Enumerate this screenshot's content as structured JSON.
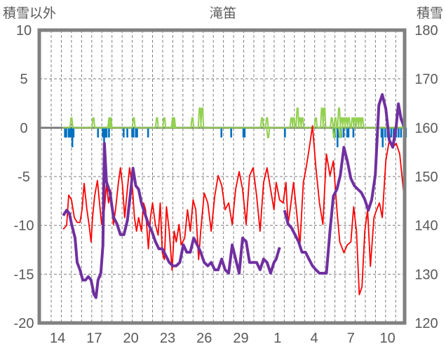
{
  "chart_data": {
    "type": "line",
    "title": "滝笛",
    "ylabel_left": "積雪以外",
    "ylabel_right": "積雪",
    "ylim_left": [
      -20,
      10
    ],
    "yticks_left": [
      "10",
      "5",
      "0",
      "-5",
      "-10",
      "-15",
      "-20"
    ],
    "ylim_right": [
      120,
      180
    ],
    "yticks_right": [
      "180",
      "170",
      "160",
      "150",
      "140",
      "130",
      "120"
    ],
    "x_unit": "days since 14th",
    "xlim": [
      -1.5,
      28.4
    ],
    "xtick_labels": [
      "14",
      "17",
      "20",
      "23",
      "26",
      "29",
      "1",
      "4",
      "7",
      "10"
    ],
    "grid": true,
    "colors": {
      "temperature": "#ff0000",
      "snow_depth": "#7030a0",
      "precip": "#92d050",
      "bars": "#0070c0",
      "frame": "#808080"
    },
    "series": [
      {
        "name": "temperature",
        "axis": "left",
        "points": [
          [
            0.46,
            -10.4
          ],
          [
            0.74,
            -10.0
          ],
          [
            0.91,
            -6.9
          ],
          [
            1.14,
            -7.4
          ],
          [
            1.37,
            -9.2
          ],
          [
            1.6,
            -9.7
          ],
          [
            1.83,
            -9.7
          ],
          [
            2.0,
            -8.4
          ],
          [
            2.17,
            -5.7
          ],
          [
            2.4,
            -8.4
          ],
          [
            2.57,
            -9.9
          ],
          [
            2.74,
            -11.7
          ],
          [
            2.86,
            -9.2
          ],
          [
            3.03,
            -7.0
          ],
          [
            3.26,
            -5.4
          ],
          [
            3.43,
            -7.7
          ],
          [
            3.6,
            -9.9
          ],
          [
            3.83,
            -8.4
          ],
          [
            4.0,
            -5.7
          ],
          [
            4.17,
            -7.7
          ],
          [
            4.34,
            -6.4
          ],
          [
            4.57,
            -9.9
          ],
          [
            4.74,
            -8.4
          ],
          [
            4.97,
            -5.7
          ],
          [
            5.14,
            -4.1
          ],
          [
            5.31,
            -5.9
          ],
          [
            5.49,
            -9.2
          ],
          [
            5.71,
            -6.3
          ],
          [
            5.89,
            -4.1
          ],
          [
            6.11,
            -5.9
          ],
          [
            6.29,
            -9.2
          ],
          [
            6.46,
            -10.6
          ],
          [
            6.63,
            -9.2
          ],
          [
            6.86,
            -10.6
          ],
          [
            7.03,
            -7.7
          ],
          [
            7.2,
            -8.4
          ],
          [
            7.43,
            -12.4
          ],
          [
            7.6,
            -9.2
          ],
          [
            7.77,
            -7.7
          ],
          [
            8.0,
            -9.9
          ],
          [
            8.23,
            -11.0
          ],
          [
            8.4,
            -7.7
          ],
          [
            8.57,
            -12.8
          ],
          [
            8.74,
            -13.5
          ],
          [
            8.91,
            -8.1
          ],
          [
            9.14,
            -10.6
          ],
          [
            9.37,
            -14.6
          ],
          [
            9.54,
            -10.6
          ],
          [
            9.71,
            -11.7
          ],
          [
            9.94,
            -9.9
          ],
          [
            10.11,
            -12.0
          ],
          [
            10.4,
            -11.3
          ],
          [
            10.63,
            -8.4
          ],
          [
            10.86,
            -10.6
          ],
          [
            11.09,
            -7.4
          ],
          [
            11.31,
            -8.4
          ],
          [
            11.54,
            -13.5
          ],
          [
            11.71,
            -10.6
          ],
          [
            12.0,
            -6.7
          ],
          [
            12.29,
            -7.7
          ],
          [
            12.57,
            -10.6
          ],
          [
            12.86,
            -7.0
          ],
          [
            13.14,
            -4.9
          ],
          [
            13.43,
            -5.9
          ],
          [
            13.71,
            -8.4
          ],
          [
            14.0,
            -7.7
          ],
          [
            14.29,
            -9.9
          ],
          [
            14.57,
            -6.3
          ],
          [
            14.86,
            -4.5
          ],
          [
            15.14,
            -6.3
          ],
          [
            15.43,
            -9.9
          ],
          [
            15.71,
            -4.9
          ],
          [
            16.0,
            -4.1
          ],
          [
            16.29,
            -7.0
          ],
          [
            16.57,
            -10.6
          ],
          [
            16.86,
            -5.6
          ],
          [
            17.14,
            -4.1
          ],
          [
            17.43,
            -6.3
          ],
          [
            17.71,
            -8.4
          ],
          [
            17.89,
            -5.6
          ],
          [
            18.17,
            -7.4
          ],
          [
            18.46,
            -7.7
          ],
          [
            18.69,
            -5.6
          ],
          [
            18.86,
            -9.9
          ],
          [
            19.03,
            -8.4
          ],
          [
            19.31,
            -5.6
          ],
          [
            19.54,
            -8.4
          ],
          [
            19.83,
            -12.0
          ],
          [
            20.11,
            -5.6
          ],
          [
            20.34,
            -4.1
          ],
          [
            20.57,
            -2.3
          ],
          [
            20.86,
            0.2
          ],
          [
            21.14,
            -4.1
          ],
          [
            21.43,
            -7.7
          ],
          [
            21.71,
            -9.9
          ],
          [
            22.0,
            -2.7
          ],
          [
            22.29,
            -4.9
          ],
          [
            22.57,
            -3.4
          ],
          [
            22.86,
            -8.4
          ],
          [
            23.09,
            -11.7
          ],
          [
            23.43,
            -12.8
          ],
          [
            23.71,
            -12.0
          ],
          [
            24.0,
            -11.7
          ],
          [
            24.23,
            -8.1
          ],
          [
            24.46,
            -10.6
          ],
          [
            24.69,
            -17.1
          ],
          [
            24.91,
            -16.3
          ],
          [
            25.14,
            -10.6
          ],
          [
            25.37,
            -8.4
          ],
          [
            25.6,
            -14.2
          ],
          [
            25.89,
            -9.2
          ],
          [
            26.11,
            -8.4
          ],
          [
            26.34,
            -7.7
          ],
          [
            26.57,
            -9.2
          ],
          [
            26.86,
            -3.4
          ],
          [
            27.14,
            -1.3
          ],
          [
            27.43,
            -2.0
          ],
          [
            27.71,
            -1.6
          ],
          [
            28.0,
            -2.7
          ],
          [
            28.29,
            -6.3
          ],
          [
            28.46,
            -7.7
          ]
        ]
      },
      {
        "name": "snow_depth",
        "axis": "right",
        "points": [
          [
            0.46,
            142.0
          ],
          [
            0.74,
            143.1
          ],
          [
            0.97,
            142.4
          ],
          [
            1.14,
            140.3
          ],
          [
            1.43,
            137.4
          ],
          [
            1.6,
            132.4
          ],
          [
            1.83,
            130.9
          ],
          [
            2.06,
            128.8
          ],
          [
            2.29,
            128.8
          ],
          [
            2.51,
            129.5
          ],
          [
            2.74,
            128.8
          ],
          [
            2.97,
            125.9
          ],
          [
            3.14,
            125.2
          ],
          [
            3.31,
            128.8
          ],
          [
            3.54,
            130.2
          ],
          [
            3.71,
            136.0
          ],
          [
            3.83,
            156.8
          ],
          [
            4.0,
            148.9
          ],
          [
            4.29,
            146.7
          ],
          [
            4.57,
            141.7
          ],
          [
            4.86,
            140.3
          ],
          [
            5.14,
            138.1
          ],
          [
            5.43,
            138.1
          ],
          [
            5.71,
            141.0
          ],
          [
            6.0,
            147.4
          ],
          [
            6.17,
            151.7
          ],
          [
            6.4,
            148.1
          ],
          [
            6.63,
            147.4
          ],
          [
            6.86,
            144.6
          ],
          [
            7.14,
            142.4
          ],
          [
            7.43,
            140.3
          ],
          [
            7.71,
            138.8
          ],
          [
            8.0,
            136.7
          ],
          [
            8.29,
            135.2
          ],
          [
            8.57,
            135.2
          ],
          [
            8.86,
            133.8
          ],
          [
            9.14,
            132.4
          ],
          [
            9.43,
            131.7
          ],
          [
            9.71,
            131.7
          ],
          [
            10.0,
            132.4
          ],
          [
            10.29,
            136.0
          ],
          [
            10.57,
            134.5
          ],
          [
            10.86,
            134.5
          ],
          [
            11.14,
            137.4
          ],
          [
            11.43,
            136.0
          ],
          [
            11.71,
            134.5
          ],
          [
            12.0,
            132.4
          ],
          [
            12.29,
            131.7
          ],
          [
            12.57,
            132.4
          ],
          [
            12.86,
            130.9
          ],
          [
            13.14,
            130.9
          ],
          [
            13.43,
            133.1
          ],
          [
            13.71,
            130.9
          ],
          [
            14.0,
            130.2
          ],
          [
            14.29,
            136.0
          ],
          [
            14.57,
            133.1
          ],
          [
            14.86,
            130.2
          ],
          [
            15.14,
            137.4
          ],
          [
            15.43,
            136.7
          ],
          [
            15.71,
            132.4
          ],
          [
            16.0,
            132.4
          ],
          [
            16.29,
            132.4
          ],
          [
            16.57,
            130.9
          ],
          [
            16.86,
            133.1
          ],
          [
            17.14,
            132.4
          ],
          [
            17.43,
            130.2
          ],
          [
            17.71,
            132.4
          ],
          [
            17.89,
            133.1
          ],
          [
            18.17,
            135.5
          ],
          null,
          [
            18.57,
            143.1
          ],
          [
            18.86,
            140.3
          ],
          [
            19.14,
            139.5
          ],
          [
            19.43,
            138.1
          ],
          [
            19.71,
            136.7
          ],
          [
            20.0,
            134.5
          ],
          [
            20.29,
            134.5
          ],
          [
            20.57,
            133.1
          ],
          [
            20.86,
            131.7
          ],
          [
            21.14,
            130.9
          ],
          [
            21.43,
            130.2
          ],
          [
            21.71,
            130.2
          ],
          [
            22.0,
            130.2
          ],
          [
            22.29,
            138.8
          ],
          [
            22.57,
            146.0
          ],
          [
            22.86,
            147.4
          ],
          [
            23.14,
            150.3
          ],
          [
            23.43,
            156.0
          ],
          [
            23.71,
            153.2
          ],
          [
            24.0,
            149.6
          ],
          [
            24.29,
            148.1
          ],
          [
            24.57,
            147.4
          ],
          [
            24.86,
            146.7
          ],
          [
            25.14,
            145.3
          ],
          [
            25.43,
            143.1
          ],
          [
            25.71,
            145.3
          ],
          [
            26.0,
            150.3
          ],
          [
            26.29,
            164.6
          ],
          [
            26.57,
            166.8
          ],
          [
            26.86,
            163.9
          ],
          [
            27.14,
            157.5
          ],
          [
            27.43,
            156.0
          ],
          [
            27.71,
            160.3
          ],
          [
            27.89,
            164.9
          ],
          [
            28.11,
            161.8
          ],
          [
            28.34,
            160.3
          ]
        ]
      },
      {
        "name": "precip",
        "axis": "left",
        "range": [
          0.4,
          28.5
        ],
        "spikes": [
          [
            1.1,
            1
          ],
          [
            2.9,
            1
          ],
          [
            4.2,
            1
          ],
          [
            4.3,
            1
          ],
          [
            6.2,
            1
          ],
          [
            8.1,
            1
          ],
          [
            8.7,
            1
          ],
          [
            9.4,
            1
          ],
          [
            9.5,
            1
          ],
          [
            11.0,
            1
          ],
          [
            11.6,
            2
          ],
          [
            11.8,
            2
          ],
          [
            16.7,
            1
          ],
          [
            17.1,
            1
          ],
          [
            17.2,
            -1
          ],
          [
            19.1,
            1
          ],
          [
            19.3,
            1
          ],
          [
            19.6,
            2
          ],
          [
            19.8,
            1
          ],
          [
            20.0,
            1
          ],
          [
            21.1,
            1
          ],
          [
            21.6,
            2
          ],
          [
            21.8,
            2
          ],
          [
            22.4,
            1
          ],
          [
            22.6,
            -1
          ],
          [
            22.7,
            1
          ],
          [
            23.0,
            2
          ],
          [
            23.1,
            -1
          ],
          [
            23.2,
            1
          ],
          [
            23.4,
            1
          ],
          [
            23.6,
            1
          ],
          [
            23.8,
            1
          ],
          [
            24.1,
            1
          ],
          [
            24.3,
            1
          ],
          [
            24.5,
            1
          ],
          [
            24.7,
            1
          ],
          [
            24.9,
            1
          ],
          [
            28.3,
            1
          ]
        ]
      },
      {
        "name": "bars",
        "axis": "left",
        "type": "bar",
        "points": [
          [
            0.6,
            -1
          ],
          [
            0.7,
            -1
          ],
          [
            0.9,
            -1
          ],
          [
            1.0,
            -1
          ],
          [
            1.1,
            -1
          ],
          [
            1.2,
            -2
          ],
          [
            1.3,
            -1
          ],
          [
            3.3,
            -1
          ],
          [
            3.7,
            -1
          ],
          [
            3.8,
            -2
          ],
          [
            3.9,
            -1
          ],
          [
            4.0,
            -1
          ],
          [
            4.2,
            -1
          ],
          [
            5.4,
            -1
          ],
          [
            5.7,
            -1
          ],
          [
            6.1,
            -1
          ],
          [
            6.2,
            -1
          ],
          [
            6.4,
            -1
          ],
          [
            6.5,
            -1
          ],
          [
            7.4,
            -1
          ],
          [
            13.4,
            -1
          ],
          [
            14.2,
            -1
          ],
          [
            15.2,
            -1
          ],
          [
            15.3,
            -1
          ],
          [
            18.6,
            -1
          ],
          [
            22.6,
            -1
          ],
          [
            22.7,
            -1
          ],
          [
            22.9,
            -2
          ],
          [
            23.0,
            -1
          ],
          [
            23.2,
            -1
          ],
          [
            23.4,
            -1
          ],
          [
            23.7,
            -1
          ],
          [
            23.8,
            -1
          ],
          [
            24.2,
            -1
          ],
          [
            26.5,
            -1
          ],
          [
            26.6,
            -2
          ],
          [
            26.8,
            -1
          ],
          [
            27.0,
            -1
          ],
          [
            27.1,
            -1
          ],
          [
            27.3,
            -1
          ],
          [
            27.5,
            -1
          ],
          [
            27.7,
            -1
          ],
          [
            27.9,
            -1
          ],
          [
            28.1,
            -1
          ],
          [
            28.5,
            -1
          ]
        ]
      }
    ]
  }
}
